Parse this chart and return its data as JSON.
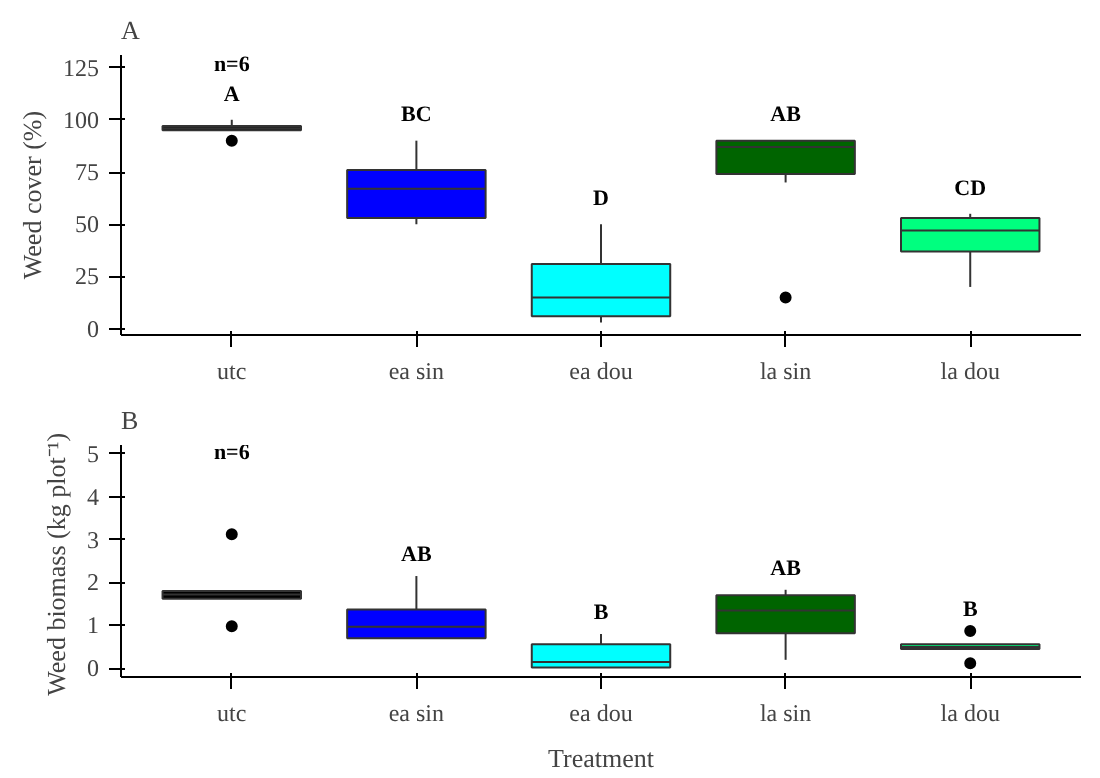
{
  "chart_data": [
    {
      "type": "box",
      "title": "A",
      "ylabel": "Weed cover (%)",
      "categories": [
        "utc",
        "ea sin",
        "ea dou",
        "la sin",
        "la dou"
      ],
      "colors": [
        "#000000",
        "#0000ff",
        "#00ffff",
        "#006400",
        "#00ff7f"
      ],
      "boxes": [
        {
          "low": 95,
          "q1": 95,
          "median": 96,
          "q3": 97,
          "high": 100,
          "outliers": [
            90
          ]
        },
        {
          "low": 50,
          "q1": 53,
          "median": 67,
          "q3": 76,
          "high": 90
        },
        {
          "low": 3,
          "q1": 6,
          "median": 15,
          "q3": 31,
          "high": 50
        },
        {
          "low": 70,
          "q1": 74,
          "median": 87,
          "q3": 90,
          "high": 90,
          "outliers": [
            15
          ]
        },
        {
          "low": 20,
          "q1": 37,
          "median": 47,
          "q3": 53,
          "high": 55
        }
      ],
      "ylim": [
        -3,
        131
      ],
      "yticks": [
        0,
        25,
        50,
        75,
        100,
        125
      ],
      "grid": false,
      "annotations": [
        "n=6",
        "A",
        "BC",
        "D",
        "AB",
        "CD"
      ]
    },
    {
      "type": "box",
      "title": "B",
      "xlabel": "Treatment",
      "ylabel": "Weed biomass  (kg plot⁻¹)",
      "categories": [
        "utc",
        "ea sin",
        "ea dou",
        "la sin",
        "la dou"
      ],
      "colors": [
        "#000000",
        "#0000ff",
        "#00ffff",
        "#006400",
        "#00ff7f"
      ],
      "boxes": [
        {
          "low": 1.62,
          "q1": 1.62,
          "median": 1.72,
          "q3": 1.8,
          "high": 1.8,
          "outliers": [
            3.12,
            0.98
          ]
        },
        {
          "low": 0.7,
          "q1": 0.7,
          "median": 0.97,
          "q3": 1.37,
          "high": 2.15
        },
        {
          "low": 0.02,
          "q1": 0.02,
          "median": 0.15,
          "q3": 0.56,
          "high": 0.8
        },
        {
          "low": 0.2,
          "q1": 0.82,
          "median": 1.35,
          "q3": 1.7,
          "high": 1.83
        },
        {
          "low": 0.45,
          "q1": 0.45,
          "median": 0.5,
          "q3": 0.56,
          "high": 0.56,
          "outliers": [
            0.87,
            0.12
          ]
        }
      ],
      "ylim": [
        -0.2,
        5.2
      ],
      "yticks": [
        0,
        1,
        2,
        3,
        4,
        5
      ],
      "grid": false,
      "annotations": [
        "n=6",
        "AB",
        "B",
        "AB",
        "B"
      ]
    }
  ]
}
